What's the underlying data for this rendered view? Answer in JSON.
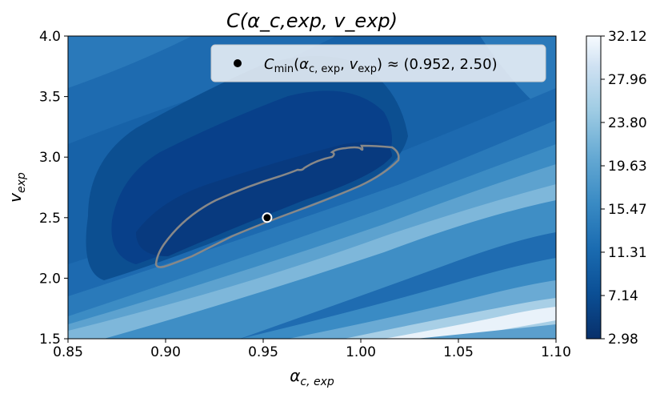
{
  "chart_data": {
    "type": "contour",
    "title": "C(α_c,exp, v_exp)",
    "xlabel": "α_c,exp",
    "ylabel": "v_exp",
    "xlim": [
      0.85,
      1.1
    ],
    "ylim": [
      1.5,
      4.0
    ],
    "xticks": [
      0.85,
      0.9,
      0.95,
      1.0,
      1.05,
      1.1
    ],
    "yticks": [
      1.5,
      2.0,
      2.5,
      3.0,
      3.5,
      4.0
    ],
    "colorbar": {
      "min": 2.98,
      "max": 32.12,
      "ticks": [
        2.98,
        7.14,
        11.31,
        15.47,
        19.63,
        23.8,
        27.96,
        32.12
      ],
      "colormap": "Blues_r",
      "levels": 14
    },
    "minimum": {
      "x": 0.952,
      "y": 2.5,
      "legend_label": "C_min(α_c,exp, v_exp) ≈ (0.952, 2.50)"
    },
    "highlight_contour": {
      "x": [
        0.897,
        0.905,
        0.93,
        0.97,
        1.0,
        1.02,
        1.02,
        1.005,
        0.99,
        0.96,
        0.92,
        0.9,
        0.897
      ],
      "y": [
        2.12,
        2.2,
        2.55,
        2.8,
        2.95,
        3.05,
        2.97,
        2.82,
        2.65,
        2.45,
        2.22,
        2.08,
        2.12
      ]
    }
  }
}
